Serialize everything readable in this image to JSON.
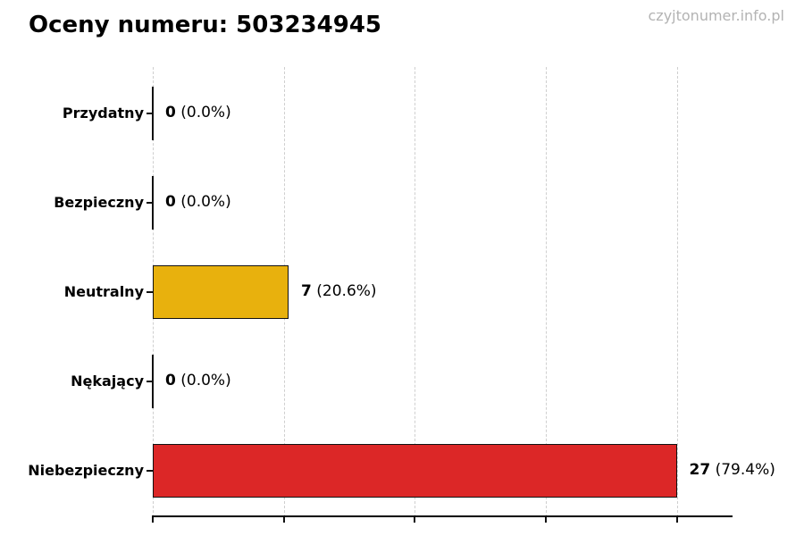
{
  "page": {
    "title": "Oceny numeru: 503234945",
    "watermark": "czyjtonumer.info.pl"
  },
  "chart_data": {
    "type": "bar",
    "orientation": "horizontal",
    "title": "Oceny numeru: 503234945",
    "categories": [
      "Przydatny",
      "Bezpieczny",
      "Neutralny",
      "Nękający",
      "Niebezpieczny"
    ],
    "values": [
      0,
      0,
      7,
      0,
      27
    ],
    "percent_labels": [
      "0.0%",
      "0.0%",
      "20.6%",
      "0.0%",
      "79.4%"
    ],
    "value_label_format": "count (percent)",
    "bar_colors": [
      null,
      null,
      "#e8b10d",
      null,
      "#dc2727"
    ],
    "bar_edge_color": "#111111",
    "xlim": [
      0,
      29.83
    ],
    "grid_values": [
      0,
      6.75,
      13.5,
      20.25,
      27
    ],
    "grid": true,
    "grid_style": "dashed",
    "grid_color": "#cfcfcf",
    "legend": false,
    "xlabel": "",
    "ylabel": "",
    "x_tick_labels": []
  }
}
